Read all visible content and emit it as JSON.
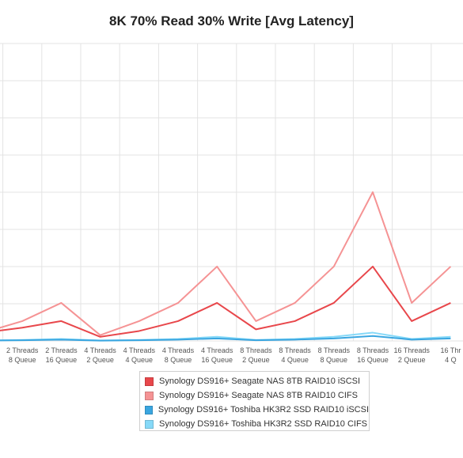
{
  "chart_data": {
    "type": "line",
    "title": "8K 70% Read 30% Write [Avg Latency]",
    "xlabel": "",
    "ylabel": "",
    "grid": true,
    "legend_position": "bottom",
    "visible_x_labels": [
      [
        "Threads",
        "Queue"
      ],
      [
        "2 Threads",
        "8 Queue"
      ],
      [
        "2 Threads",
        "16 Queue"
      ],
      [
        "4 Threads",
        "2 Queue"
      ],
      [
        "4 Threads",
        "4 Queue"
      ],
      [
        "4 Threads",
        "8 Queue"
      ],
      [
        "4 Threads",
        "16 Queue"
      ],
      [
        "8 Threads",
        "2 Queue"
      ],
      [
        "8 Threads",
        "4 Queue"
      ],
      [
        "8 Threads",
        "8 Queue"
      ],
      [
        "8 Threads",
        "16 Queue"
      ],
      [
        "16 Threads",
        "2 Queue"
      ],
      [
        "16 Thr",
        "4 Q"
      ]
    ],
    "y_gridlines": 9,
    "series": [
      {
        "name": "Synology DS916+ Seagate NAS 8TB RAID10 iSCSI",
        "color": "#e8474b",
        "values": [
          0.5,
          0.8,
          1.2,
          0.25,
          0.6,
          1.2,
          2.3,
          0.7,
          1.2,
          2.3,
          4.5,
          1.2,
          2.3
        ]
      },
      {
        "name": "Synology DS916+ Seagate NAS 8TB RAID10 CIFS",
        "color": "#f59394",
        "values": [
          0.5,
          1.2,
          2.3,
          0.35,
          1.2,
          2.3,
          4.5,
          1.2,
          2.3,
          4.5,
          9.0,
          2.3,
          4.5
        ]
      },
      {
        "name": "Synology DS916+ Toshiba HK3R2 SSD RAID10 iSCSI",
        "color": "#3aa6e0",
        "values": [
          0.02,
          0.04,
          0.08,
          0.02,
          0.04,
          0.08,
          0.15,
          0.04,
          0.08,
          0.15,
          0.3,
          0.08,
          0.15
        ]
      },
      {
        "name": "Synology DS916+ Toshiba HK3R2 SSD RAID10 CIFS",
        "color": "#86d9f8",
        "values": [
          0.03,
          0.06,
          0.12,
          0.03,
          0.06,
          0.12,
          0.25,
          0.06,
          0.12,
          0.25,
          0.5,
          0.12,
          0.25
        ]
      }
    ]
  }
}
